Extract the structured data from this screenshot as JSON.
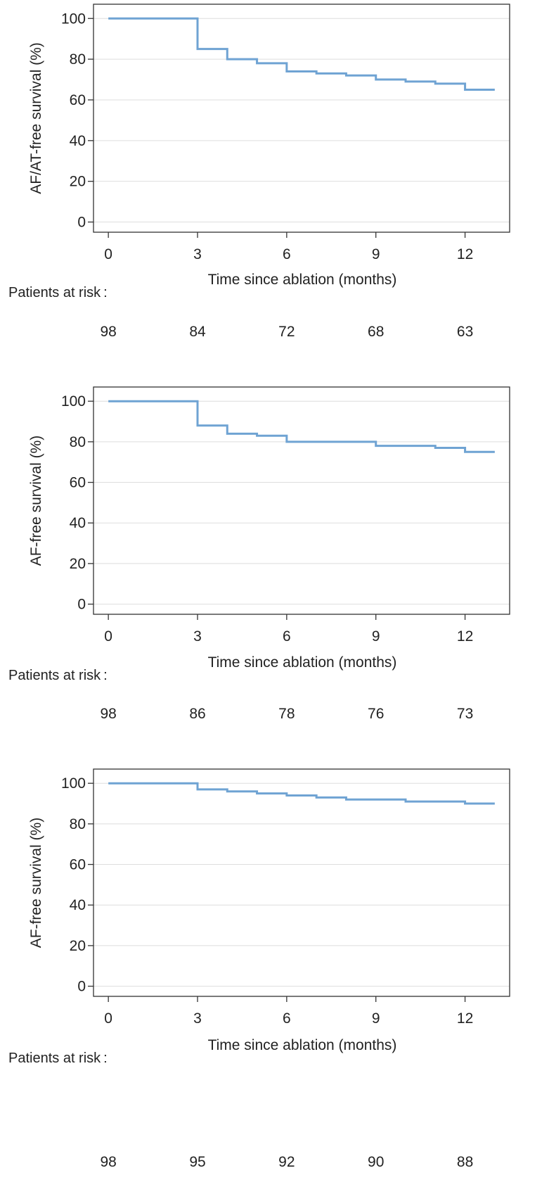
{
  "chart_data": [
    {
      "type": "line",
      "step": true,
      "title": "",
      "xlabel": "Time since ablation (months)",
      "ylabel": "AF/AT-free survival (%)",
      "xlim": [
        -0.5,
        13.5
      ],
      "ylim": [
        -5,
        107
      ],
      "x_ticks": [
        0,
        3,
        6,
        9,
        12
      ],
      "y_ticks": [
        0,
        20,
        40,
        60,
        80,
        100
      ],
      "grid": true,
      "line_color": "#6fa3d3",
      "series": [
        {
          "x": [
            0,
            3,
            4,
            5,
            6,
            7,
            8,
            9,
            10,
            11,
            12,
            13
          ],
          "y": [
            100,
            85,
            80,
            78,
            74,
            73,
            72,
            70,
            69,
            68,
            65,
            65
          ]
        }
      ],
      "risk_table": {
        "label": "Patients at risk",
        "separator": ":",
        "times": [
          0,
          3,
          6,
          9,
          12
        ],
        "counts": [
          "98",
          "84",
          "72",
          "68",
          "63"
        ]
      }
    },
    {
      "type": "line",
      "step": true,
      "title": "",
      "xlabel": "Time since ablation (months)",
      "ylabel": "AF-free survival (%)",
      "xlim": [
        -0.5,
        13.5
      ],
      "ylim": [
        -5,
        107
      ],
      "x_ticks": [
        0,
        3,
        6,
        9,
        12
      ],
      "y_ticks": [
        0,
        20,
        40,
        60,
        80,
        100
      ],
      "grid": true,
      "line_color": "#6fa3d3",
      "series": [
        {
          "x": [
            0,
            3,
            4,
            5,
            6,
            9,
            11,
            12,
            13
          ],
          "y": [
            100,
            88,
            84,
            83,
            80,
            78,
            77,
            75,
            75
          ]
        }
      ],
      "risk_table": {
        "label": "Patients at risk",
        "separator": ":",
        "times": [
          0,
          3,
          6,
          9,
          12
        ],
        "counts": [
          "98",
          "86",
          "78",
          "76",
          "73"
        ]
      }
    },
    {
      "type": "line",
      "step": true,
      "title": "",
      "xlabel": "Time since ablation (months)",
      "ylabel": "AF-free survival (%)",
      "xlim": [
        -0.5,
        13.5
      ],
      "ylim": [
        -5,
        107
      ],
      "x_ticks": [
        0,
        3,
        6,
        9,
        12
      ],
      "y_ticks": [
        0,
        20,
        40,
        60,
        80,
        100
      ],
      "grid": true,
      "line_color": "#6fa3d3",
      "series": [
        {
          "x": [
            0,
            3,
            4,
            5,
            6,
            7,
            8,
            10,
            12,
            13
          ],
          "y": [
            100,
            97,
            96,
            95,
            94,
            93,
            92,
            91,
            90,
            90
          ]
        }
      ],
      "risk_table": {
        "label": "Patients at risk",
        "separator": ":",
        "times": [
          0,
          3,
          6,
          9,
          12
        ],
        "counts": [
          "98",
          "95",
          "92",
          "90",
          "88"
        ]
      }
    }
  ]
}
